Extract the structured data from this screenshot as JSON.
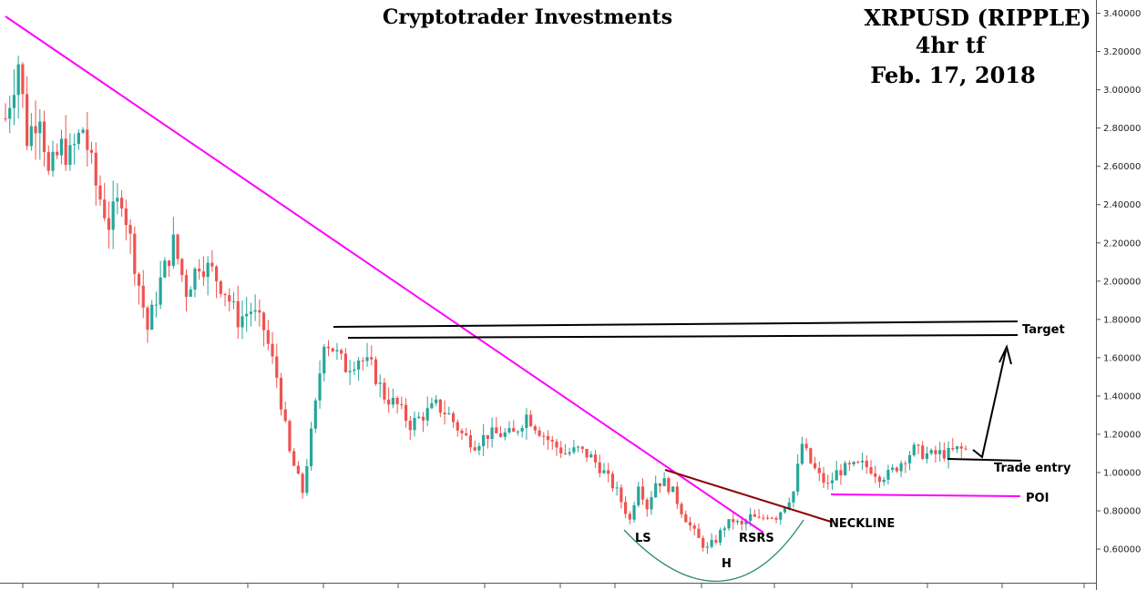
{
  "header": {
    "title": "Cryptotrader Investments",
    "pair": "XRPUSD (RIPPLE)",
    "timeframe": "4hr tf",
    "date": "Feb. 17, 2018"
  },
  "annotations": {
    "target": "Target",
    "trade_entry": "Trade entry",
    "poi": "POI",
    "neckline": "NECKLINE",
    "left_shoulder": "LS",
    "head": "H",
    "right_shoulder": "RSRS"
  },
  "colors": {
    "bull": "#26a69a",
    "bear": "#ef5350",
    "trendline": "#ff00ff",
    "neckline": "#8b0000",
    "cup": "#2e8b7a",
    "target_lines": "#000000",
    "poi_line": "#ff00ff",
    "arrow": "#000000"
  },
  "chart_data": {
    "type": "candlestick",
    "ylim": [
      0.45,
      3.45
    ],
    "y_ticks": [
      "3.40000",
      "3.20000",
      "3.00000",
      "2.80000",
      "2.60000",
      "2.40000",
      "2.20000",
      "2.00000",
      "1.80000",
      "1.60000",
      "1.40000",
      "1.20000",
      "1.00000",
      "0.80000",
      "0.60000"
    ],
    "y_tick_values": [
      3.4,
      3.2,
      3.0,
      2.8,
      2.6,
      2.4,
      2.2,
      2.0,
      1.8,
      1.6,
      1.4,
      1.2,
      1.0,
      0.8,
      0.6
    ],
    "grid": false,
    "price_path": [
      [
        0,
        2.85
      ],
      [
        3,
        3.15
      ],
      [
        5,
        2.75
      ],
      [
        8,
        2.9
      ],
      [
        10,
        2.55
      ],
      [
        13,
        2.7
      ],
      [
        15,
        2.65
      ],
      [
        18,
        2.8
      ],
      [
        21,
        2.5
      ],
      [
        24,
        2.3
      ],
      [
        27,
        2.45
      ],
      [
        30,
        2.1
      ],
      [
        33,
        1.75
      ],
      [
        36,
        2.0
      ],
      [
        39,
        2.2
      ],
      [
        42,
        1.95
      ],
      [
        45,
        2.1
      ],
      [
        48,
        2.05
      ],
      [
        51,
        1.95
      ],
      [
        54,
        1.8
      ],
      [
        57,
        1.85
      ],
      [
        60,
        1.75
      ],
      [
        63,
        1.5
      ],
      [
        66,
        1.1
      ],
      [
        69,
        0.9
      ],
      [
        72,
        1.35
      ],
      [
        74,
        1.7
      ],
      [
        76,
        1.65
      ],
      [
        79,
        1.55
      ],
      [
        82,
        1.6
      ],
      [
        85,
        1.55
      ],
      [
        88,
        1.4
      ],
      [
        91,
        1.35
      ],
      [
        94,
        1.25
      ],
      [
        97,
        1.3
      ],
      [
        100,
        1.35
      ],
      [
        103,
        1.3
      ],
      [
        106,
        1.2
      ],
      [
        109,
        1.15
      ],
      [
        112,
        1.2
      ],
      [
        115,
        1.2
      ],
      [
        118,
        1.2
      ],
      [
        121,
        1.3
      ],
      [
        124,
        1.22
      ],
      [
        127,
        1.15
      ],
      [
        130,
        1.1
      ],
      [
        133,
        1.12
      ],
      [
        136,
        1.08
      ],
      [
        139,
        1.0
      ],
      [
        142,
        0.9
      ],
      [
        145,
        0.75
      ],
      [
        147,
        0.95
      ],
      [
        149,
        0.82
      ],
      [
        151,
        0.95
      ],
      [
        153,
        0.95
      ],
      [
        155,
        0.9
      ],
      [
        157,
        0.8
      ],
      [
        159,
        0.72
      ],
      [
        161,
        0.65
      ],
      [
        163,
        0.6
      ],
      [
        165,
        0.65
      ],
      [
        167,
        0.72
      ],
      [
        169,
        0.75
      ],
      [
        171,
        0.72
      ],
      [
        173,
        0.77
      ],
      [
        175,
        0.75
      ],
      [
        177,
        0.78
      ],
      [
        179,
        0.77
      ],
      [
        181,
        0.83
      ],
      [
        183,
        0.9
      ],
      [
        185,
        1.15
      ],
      [
        187,
        1.05
      ],
      [
        189,
        0.98
      ],
      [
        191,
        0.93
      ],
      [
        193,
        1.0
      ],
      [
        195,
        1.02
      ],
      [
        197,
        1.03
      ],
      [
        199,
        1.04
      ],
      [
        201,
        1.02
      ],
      [
        203,
        0.98
      ],
      [
        205,
        0.99
      ],
      [
        207,
        1.03
      ],
      [
        209,
        1.08
      ],
      [
        211,
        1.12
      ],
      [
        213,
        1.1
      ],
      [
        215,
        1.09
      ],
      [
        217,
        1.1
      ],
      [
        219,
        1.1
      ],
      [
        221,
        1.12
      ],
      [
        223,
        1.12
      ]
    ]
  }
}
